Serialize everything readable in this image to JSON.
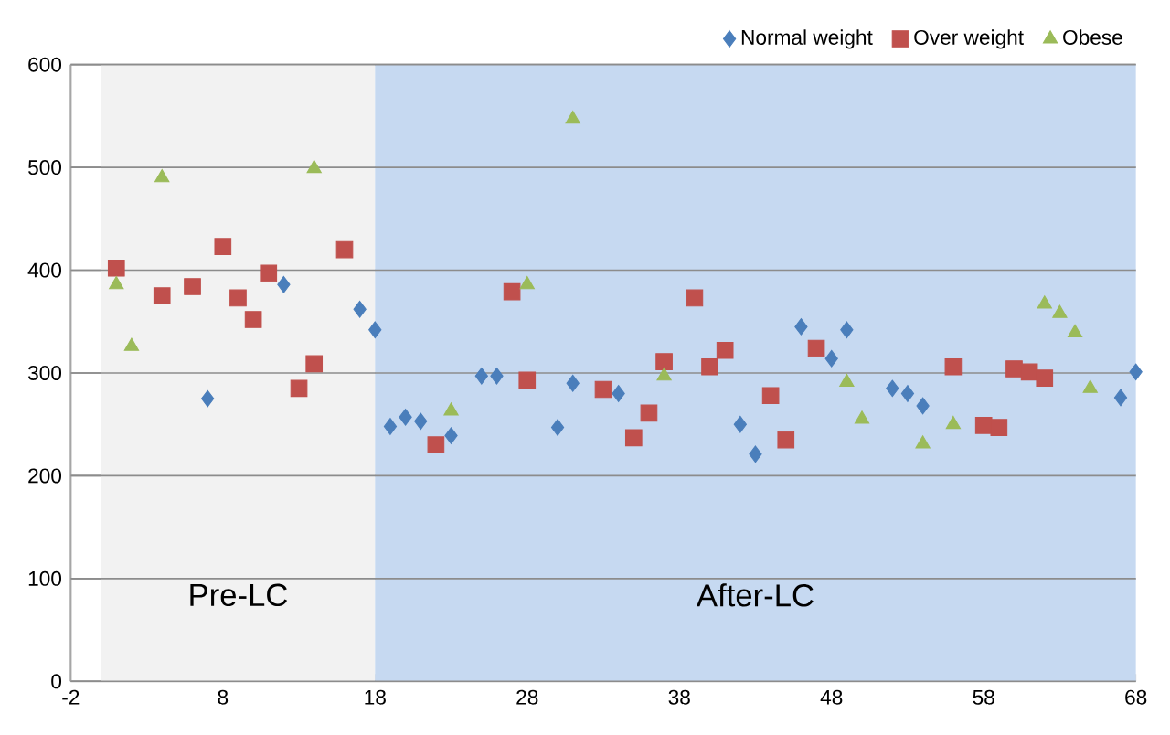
{
  "chart_data": {
    "type": "scatter",
    "xlim": [
      -2,
      68
    ],
    "ylim": [
      0,
      600
    ],
    "xticks": [
      -2,
      8,
      18,
      28,
      38,
      48,
      58,
      68
    ],
    "yticks": [
      0,
      100,
      200,
      300,
      400,
      500,
      600
    ],
    "grid": "y",
    "legend": "top right",
    "bands": [
      {
        "axis": "x",
        "from": 0,
        "to": 18,
        "label": "Pre-LC",
        "color": "#f2f2f2"
      },
      {
        "axis": "x",
        "from": 18,
        "to": 68,
        "label": "After-LC",
        "color": "#c6d9f1"
      }
    ],
    "series": [
      {
        "name": "Normal weight",
        "color": "#4a7ebb",
        "marker": "diamond",
        "x": [
          7,
          12,
          17,
          18,
          19,
          20,
          21,
          23,
          25,
          26,
          30,
          31,
          34,
          42,
          43,
          46,
          48,
          49,
          52,
          53,
          54,
          67,
          68
        ],
        "values": [
          275,
          386,
          362,
          342,
          248,
          257,
          253,
          239,
          297,
          297,
          247,
          290,
          280,
          250,
          221,
          345,
          314,
          342,
          285,
          280,
          268,
          276,
          301
        ]
      },
      {
        "name": "Over weight",
        "color": "#c0504d",
        "marker": "square",
        "x": [
          1,
          4,
          6,
          8,
          9,
          10,
          11,
          13,
          14,
          16,
          22,
          27,
          28,
          33,
          35,
          36,
          37,
          39,
          40,
          41,
          44,
          45,
          47,
          56,
          58,
          59,
          60,
          61,
          62
        ],
        "values": [
          402,
          375,
          384,
          423,
          373,
          352,
          397,
          285,
          309,
          420,
          230,
          379,
          293,
          284,
          237,
          261,
          311,
          373,
          306,
          322,
          278,
          235,
          324,
          306,
          249,
          247,
          304,
          301,
          295
        ]
      },
      {
        "name": "Obese",
        "color": "#9bbb59",
        "marker": "triangle",
        "x": [
          1,
          2,
          4,
          14,
          23,
          28,
          31,
          37,
          49,
          50,
          54,
          56,
          62,
          63,
          64,
          65
        ],
        "values": [
          386,
          326,
          490,
          499,
          263,
          386,
          547,
          297,
          291,
          255,
          231,
          250,
          367,
          358,
          339,
          285
        ]
      }
    ]
  }
}
